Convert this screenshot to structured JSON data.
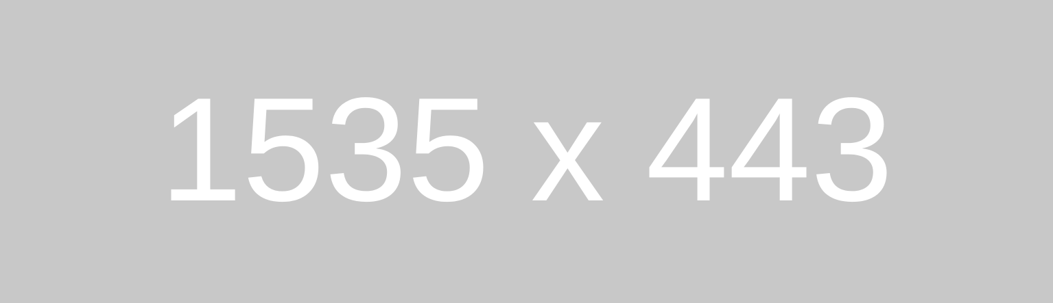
{
  "placeholder": {
    "label": "1535 x 443",
    "background_color": "#c8c8c8",
    "text_color": "#ffffff"
  }
}
